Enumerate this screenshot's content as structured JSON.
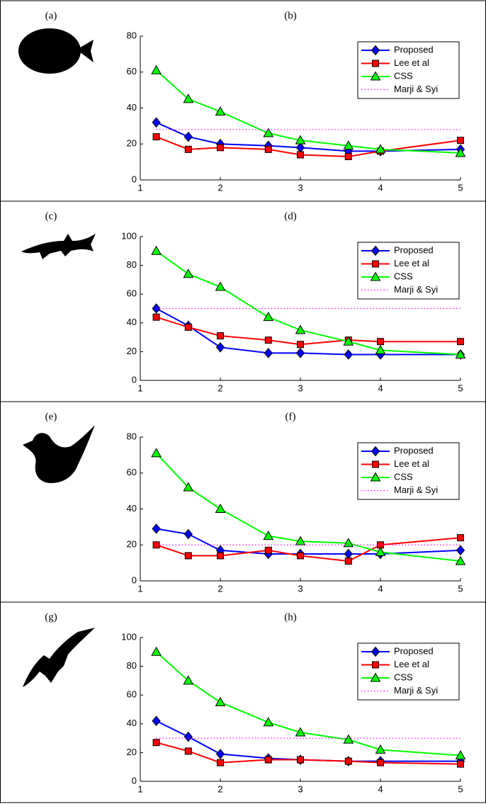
{
  "chart_data": [
    {
      "type": "line",
      "shape_label": "(a)",
      "title": "(b)",
      "x": [
        1.2,
        1.6,
        2,
        2.6,
        3,
        3.6,
        4,
        5
      ],
      "xlim": [
        1,
        5
      ],
      "xticks": [
        1,
        2,
        3,
        4,
        5
      ],
      "ylim": [
        0,
        80
      ],
      "yticks": [
        0,
        20,
        40,
        60,
        80
      ],
      "legend": "upper right",
      "series": [
        {
          "name": "Proposed",
          "color": "#0000ff",
          "marker": "diamond",
          "values": [
            32,
            24,
            20,
            19,
            18,
            16,
            16,
            17
          ]
        },
        {
          "name": "Lee et al",
          "color": "#ff0000",
          "marker": "square",
          "values": [
            24,
            17,
            18,
            17,
            14,
            13,
            16,
            22
          ]
        },
        {
          "name": "CSS",
          "color": "#00ff00",
          "marker": "triangle",
          "values": [
            61,
            45,
            38,
            26,
            22,
            19,
            17,
            15
          ]
        },
        {
          "name": "Marji & Syi",
          "color": "#ff00ff",
          "linestyle": "dotted",
          "values": [
            28,
            28,
            28,
            28,
            28,
            28,
            28,
            28
          ]
        }
      ]
    },
    {
      "type": "line",
      "shape_label": "(c)",
      "title": "(d)",
      "x": [
        1.2,
        1.6,
        2,
        2.6,
        3,
        3.6,
        4,
        5
      ],
      "xlim": [
        1,
        5
      ],
      "xticks": [
        1,
        2,
        3,
        4,
        5
      ],
      "ylim": [
        0,
        100
      ],
      "yticks": [
        0,
        20,
        40,
        60,
        80,
        100
      ],
      "legend": "upper right",
      "series": [
        {
          "name": "Proposed",
          "color": "#0000ff",
          "marker": "diamond",
          "values": [
            50,
            38,
            23,
            19,
            19,
            18,
            18,
            18
          ]
        },
        {
          "name": "Lee et al",
          "color": "#ff0000",
          "marker": "square",
          "values": [
            44,
            37,
            31,
            28,
            25,
            28,
            27,
            27
          ]
        },
        {
          "name": "CSS",
          "color": "#00ff00",
          "marker": "triangle",
          "values": [
            90,
            74,
            65,
            44,
            35,
            27,
            21,
            18
          ]
        },
        {
          "name": "Marji & Syi",
          "color": "#ff00ff",
          "linestyle": "dotted",
          "values": [
            50,
            50,
            50,
            50,
            50,
            50,
            50,
            50
          ]
        }
      ]
    },
    {
      "type": "line",
      "shape_label": "(e)",
      "title": "(f)",
      "x": [
        1.2,
        1.6,
        2,
        2.6,
        3,
        3.6,
        4,
        5
      ],
      "xlim": [
        1,
        5
      ],
      "xticks": [
        1,
        2,
        3,
        4,
        5
      ],
      "ylim": [
        0,
        80
      ],
      "yticks": [
        0,
        20,
        40,
        60,
        80
      ],
      "legend": "upper right",
      "series": [
        {
          "name": "Proposed",
          "color": "#0000ff",
          "marker": "diamond",
          "values": [
            29,
            26,
            17,
            15,
            15,
            15,
            15,
            17
          ]
        },
        {
          "name": "Lee et al",
          "color": "#ff0000",
          "marker": "square",
          "values": [
            20,
            14,
            14,
            17,
            14,
            11,
            20,
            24
          ]
        },
        {
          "name": "CSS",
          "color": "#00ff00",
          "marker": "triangle",
          "values": [
            71,
            52,
            40,
            25,
            22,
            21,
            16,
            11
          ]
        },
        {
          "name": "Marji & Syi",
          "color": "#ff00ff",
          "linestyle": "dotted",
          "values": [
            20,
            20,
            20,
            20,
            20,
            20,
            20,
            20
          ]
        }
      ]
    },
    {
      "type": "line",
      "shape_label": "(g)",
      "title": "(h)",
      "x": [
        1.2,
        1.6,
        2,
        2.6,
        3,
        3.6,
        4,
        5
      ],
      "xlim": [
        1,
        5
      ],
      "xticks": [
        1,
        2,
        3,
        4,
        5
      ],
      "ylim": [
        0,
        100
      ],
      "yticks": [
        0,
        20,
        40,
        60,
        80,
        100
      ],
      "legend": "upper right",
      "series": [
        {
          "name": "Proposed",
          "color": "#0000ff",
          "marker": "diamond",
          "values": [
            42,
            31,
            19,
            16,
            15,
            14,
            14,
            14
          ]
        },
        {
          "name": "Lee et al",
          "color": "#ff0000",
          "marker": "square",
          "values": [
            27,
            21,
            13,
            15,
            15,
            14,
            13,
            12
          ]
        },
        {
          "name": "CSS",
          "color": "#00ff00",
          "marker": "triangle",
          "values": [
            90,
            70,
            55,
            41,
            34,
            29,
            22,
            18
          ]
        },
        {
          "name": "Marji & Syi",
          "color": "#ff00ff",
          "linestyle": "dotted",
          "values": [
            30,
            30,
            30,
            30,
            30,
            30,
            30,
            30
          ]
        }
      ]
    }
  ]
}
